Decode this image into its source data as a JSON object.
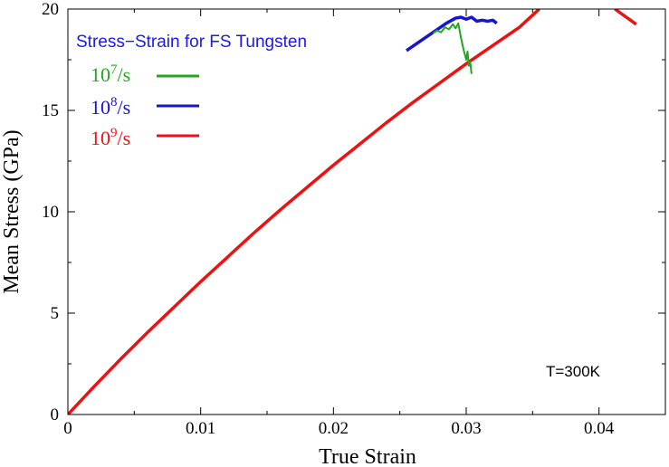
{
  "chart_data": {
    "type": "line",
    "title": "Stress−Strain for FS Tungsten",
    "xlabel": "True Strain",
    "ylabel": "Mean Stress (GPa)",
    "xlim": [
      0,
      0.045
    ],
    "ylim": [
      0,
      20
    ],
    "x_ticks": [
      0,
      0.01,
      0.02,
      0.03,
      0.04
    ],
    "x_tick_labels": [
      "0",
      "0.01",
      "0.02",
      "0.03",
      "0.04"
    ],
    "y_ticks": [
      0,
      5,
      10,
      15,
      20
    ],
    "y_tick_labels": [
      "0",
      "5",
      "10",
      "15",
      "20"
    ],
    "grid": false,
    "legend_position": "top-left",
    "annotation": "T=300K",
    "series": [
      {
        "name": "10^7/s",
        "label_base": "10",
        "label_exp": "7",
        "label_unit": "/s",
        "color": "#1fa81f",
        "points": [
          [
            0.0275,
            18.8
          ],
          [
            0.0278,
            18.95
          ],
          [
            0.0281,
            18.85
          ],
          [
            0.0284,
            19.1
          ],
          [
            0.0287,
            19.0
          ],
          [
            0.029,
            19.25
          ],
          [
            0.0292,
            19.05
          ],
          [
            0.0294,
            19.3
          ],
          [
            0.0296,
            18.6
          ],
          [
            0.0298,
            18.0
          ],
          [
            0.03,
            17.5
          ],
          [
            0.0301,
            17.9
          ],
          [
            0.0302,
            17.2
          ],
          [
            0.0303,
            17.4
          ],
          [
            0.0304,
            16.8
          ]
        ]
      },
      {
        "name": "10^8/s",
        "label_base": "10",
        "label_exp": "8",
        "label_unit": "/s",
        "color": "#1414d2",
        "points": [
          [
            0.0255,
            17.95
          ],
          [
            0.0265,
            18.4
          ],
          [
            0.0275,
            18.85
          ],
          [
            0.0285,
            19.3
          ],
          [
            0.0292,
            19.55
          ],
          [
            0.0296,
            19.6
          ],
          [
            0.03,
            19.5
          ],
          [
            0.0304,
            19.6
          ],
          [
            0.0308,
            19.4
          ],
          [
            0.0312,
            19.45
          ],
          [
            0.0316,
            19.4
          ],
          [
            0.032,
            19.45
          ],
          [
            0.0323,
            19.3
          ]
        ]
      },
      {
        "name": "10^9/s",
        "label_base": "10",
        "label_exp": "9",
        "label_unit": "/s",
        "color": "#ee1111",
        "segments": [
          [
            [
              0,
              0
            ],
            [
              0.002,
              1.4
            ],
            [
              0.004,
              2.75
            ],
            [
              0.006,
              4.05
            ],
            [
              0.008,
              5.3
            ],
            [
              0.01,
              6.55
            ],
            [
              0.012,
              7.75
            ],
            [
              0.014,
              8.95
            ],
            [
              0.016,
              10.1
            ],
            [
              0.018,
              11.2
            ],
            [
              0.02,
              12.3
            ],
            [
              0.022,
              13.35
            ],
            [
              0.024,
              14.4
            ],
            [
              0.026,
              15.4
            ],
            [
              0.028,
              16.35
            ],
            [
              0.03,
              17.3
            ],
            [
              0.032,
              18.2
            ],
            [
              0.034,
              19.1
            ],
            [
              0.0355,
              20.0
            ]
          ],
          [
            [
              0.0412,
              20.0
            ],
            [
              0.0428,
              19.25
            ]
          ]
        ]
      }
    ]
  }
}
